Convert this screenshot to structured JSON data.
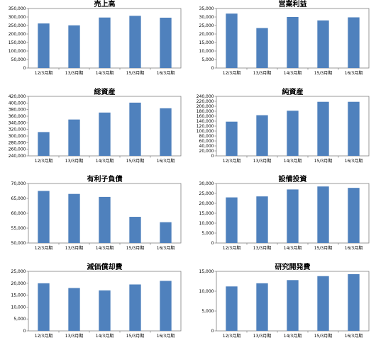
{
  "chart_data": [
    {
      "type": "bar",
      "title": "売上高",
      "categories": [
        "12/3月期",
        "13/3月期",
        "14/3月期",
        "15/3月期",
        "16/3月期"
      ],
      "values": [
        262000,
        251000,
        297000,
        307000,
        296000
      ],
      "ylim": [
        0,
        350000
      ],
      "yticks": [
        "0",
        "50,000",
        "100,000",
        "150,000",
        "200,000",
        "250,000",
        "300,000",
        "350,000"
      ],
      "grid": false,
      "bar_color": "#4f81bd"
    },
    {
      "type": "bar",
      "title": "営業利益",
      "categories": [
        "12/3月期",
        "13/3月期",
        "14/3月期",
        "15/3月期",
        "16/3月期"
      ],
      "values": [
        32000,
        23500,
        30000,
        28000,
        29800
      ],
      "ylim": [
        0,
        35000
      ],
      "yticks": [
        "0",
        "5,000",
        "10,000",
        "15,000",
        "20,000",
        "25,000",
        "30,000",
        "35,000"
      ],
      "grid": false,
      "bar_color": "#4f81bd"
    },
    {
      "type": "bar",
      "title": "総資産",
      "categories": [
        "12/3月期",
        "13/3月期",
        "14/3月期",
        "15/3月期",
        "16/3月期"
      ],
      "values": [
        312000,
        350000,
        371000,
        401000,
        384000
      ],
      "ylim": [
        240000,
        420000
      ],
      "yticks": [
        "240,000",
        "260,000",
        "280,000",
        "300,000",
        "320,000",
        "340,000",
        "360,000",
        "380,000",
        "400,000",
        "420,000"
      ],
      "grid": false,
      "bar_color": "#4f81bd"
    },
    {
      "type": "bar",
      "title": "純資産",
      "categories": [
        "12/3月期",
        "13/3月期",
        "14/3月期",
        "15/3月期",
        "16/3月期"
      ],
      "values": [
        138000,
        164000,
        182000,
        218000,
        218000
      ],
      "ylim": [
        0,
        240000
      ],
      "yticks": [
        "0",
        "20,000",
        "40,000",
        "60,000",
        "80,000",
        "100,000",
        "120,000",
        "140,000",
        "160,000",
        "180,000",
        "200,000",
        "220,000",
        "240,000"
      ],
      "grid": false,
      "bar_color": "#4f81bd"
    },
    {
      "type": "bar",
      "title": "有利子負債",
      "categories": [
        "12/3月期",
        "13/3月期",
        "14/3月期",
        "15/3月期",
        "16/3月期"
      ],
      "values": [
        67500,
        66500,
        65500,
        58800,
        57000
      ],
      "ylim": [
        50000,
        70000
      ],
      "yticks": [
        "50,000",
        "55,000",
        "60,000",
        "65,000",
        "70,000"
      ],
      "grid": false,
      "bar_color": "#4f81bd"
    },
    {
      "type": "bar",
      "title": "設備投資",
      "categories": [
        "12/3月期",
        "13/3月期",
        "14/3月期",
        "15/3月期",
        "16/3月期"
      ],
      "values": [
        23000,
        23500,
        27000,
        28500,
        27800
      ],
      "ylim": [
        0,
        30000
      ],
      "yticks": [
        "0",
        "5,000",
        "10,000",
        "15,000",
        "20,000",
        "25,000",
        "30,000"
      ],
      "grid": false,
      "bar_color": "#4f81bd"
    },
    {
      "type": "bar",
      "title": "減価償却費",
      "categories": [
        "12/3月期",
        "13/3月期",
        "14/3月期",
        "15/3月期",
        "16/3月期"
      ],
      "values": [
        20000,
        18000,
        17000,
        19500,
        21000
      ],
      "ylim": [
        0,
        25000
      ],
      "yticks": [
        "0",
        "5,000",
        "10,000",
        "15,000",
        "20,000",
        "25,000"
      ],
      "grid": false,
      "bar_color": "#4f81bd"
    },
    {
      "type": "bar",
      "title": "研究開発費",
      "categories": [
        "12/3月期",
        "13/3月期",
        "14/3月期",
        "15/3月期",
        "16/3月期"
      ],
      "values": [
        11200,
        12000,
        12800,
        13800,
        14300
      ],
      "ylim": [
        0,
        15000
      ],
      "yticks": [
        "0",
        "5,000",
        "10,000",
        "15,000"
      ],
      "grid": false,
      "bar_color": "#4f81bd"
    }
  ]
}
